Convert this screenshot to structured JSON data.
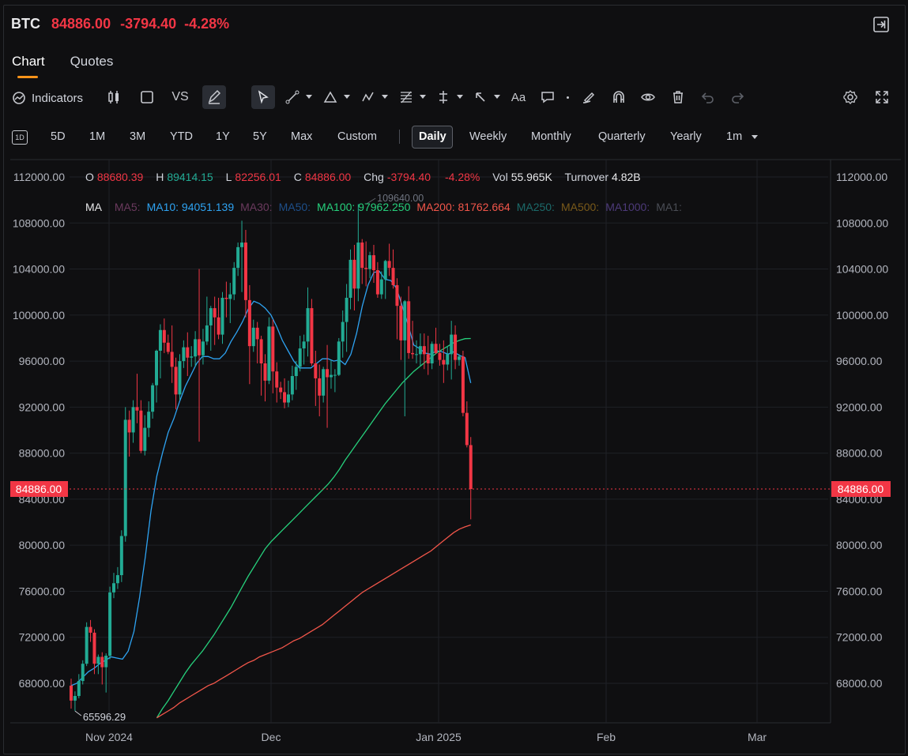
{
  "header": {
    "symbol": "BTC",
    "price": "84886.00",
    "change": "-3794.40",
    "change_pct": "-4.28%"
  },
  "tabs": [
    {
      "label": "Chart",
      "active": true
    },
    {
      "label": "Quotes",
      "active": false
    }
  ],
  "toolbar": {
    "indicators_label": "Indicators",
    "vs_label": "VS",
    "text_tool_label": "Aa"
  },
  "periods": {
    "timeline_icon_label": "1D",
    "ranges": [
      "5D",
      "1M",
      "3M",
      "YTD",
      "1Y",
      "5Y",
      "Max",
      "Custom"
    ],
    "intervals": [
      "Daily",
      "Weekly",
      "Monthly",
      "Quarterly",
      "Yearly",
      "1m"
    ],
    "selected_interval": "Daily"
  },
  "ohlc": {
    "o_label": "O",
    "o": "88680.39",
    "h_label": "H",
    "h": "89414.15",
    "l_label": "L",
    "l": "82256.01",
    "c_label": "C",
    "c": "84886.00",
    "chg_label": "Chg",
    "chg": "-3794.40",
    "chg_pct": "-4.28%",
    "vol_label": "Vol",
    "vol": "55.965K",
    "turnover_label": "Turnover",
    "turnover": "4.82B"
  },
  "ma_legend": {
    "label": "MA",
    "items": [
      {
        "text": "MA5:",
        "color": "#6b3a5e"
      },
      {
        "text": "MA10: 94051.139",
        "color": "#2ea3f2"
      },
      {
        "text": "MA30:",
        "color": "#6b3a5e"
      },
      {
        "text": "MA50:",
        "color": "#1e4f8a"
      },
      {
        "text": "MA100: 97962.250",
        "color": "#26d07c"
      },
      {
        "text": "MA200: 81762.664",
        "color": "#f2564a"
      },
      {
        "text": "MA250:",
        "color": "#1c6a6a"
      },
      {
        "text": "MA500:",
        "color": "#7a5a1a"
      },
      {
        "text": "MA1000:",
        "color": "#4d3a7a"
      },
      {
        "text": "MA1:",
        "color": "#4a4d55"
      }
    ]
  },
  "chart_data": {
    "type": "candlestick",
    "y_ticks": [
      "112000.00",
      "108000.00",
      "104000.00",
      "100000.00",
      "96000.00",
      "92000.00",
      "88000.00",
      "84000.00",
      "80000.00",
      "76000.00",
      "72000.00",
      "68000.00"
    ],
    "x_ticks": [
      "Nov 2024",
      "Dec",
      "Jan 2025",
      "Feb",
      "Mar"
    ],
    "ylim": [
      65000,
      112500
    ],
    "last_price_label": "84886.00",
    "max_annotation": "109640.00",
    "min_annotation": "65596.29",
    "colors": {
      "up": "#22ab94",
      "down": "#f23645",
      "ma10": "#2ea3f2",
      "ma100": "#26d07c",
      "ma200": "#f2564a"
    },
    "series": [
      {
        "name": "MA10",
        "values": [
          67800,
          68000,
          68500,
          69000,
          69300,
          69700,
          70000,
          70300,
          70200,
          70100,
          70800,
          72500,
          75500,
          79000,
          83000,
          86000,
          88000,
          89800,
          91000,
          92500,
          93800,
          94800,
          95800,
          96400,
          96400,
          96200,
          96200,
          96700,
          97700,
          98500,
          99400,
          100500,
          101200,
          101000,
          100600,
          100000,
          99000,
          97800,
          96900,
          96000,
          95400,
          95400,
          95400,
          95800,
          96200,
          96200,
          96000,
          96100,
          95700,
          96600,
          98400,
          100800,
          102600,
          103700,
          103800,
          103100,
          103000,
          102300,
          100800,
          99200,
          97400,
          97100,
          96700,
          96600,
          96900,
          96800,
          96600,
          96800,
          96500,
          96300,
          94100
        ]
      },
      {
        "name": "MA100",
        "values": [
          null,
          null,
          null,
          null,
          null,
          null,
          null,
          null,
          null,
          null,
          null,
          null,
          null,
          null,
          null,
          65000,
          65800,
          66500,
          67300,
          68100,
          68900,
          69600,
          70200,
          70800,
          71500,
          72200,
          73000,
          73800,
          74600,
          75500,
          76400,
          77300,
          78100,
          78900,
          79700,
          80300,
          80800,
          81300,
          81800,
          82300,
          82800,
          83300,
          83800,
          84300,
          84800,
          85300,
          85900,
          86600,
          87400,
          88100,
          88800,
          89500,
          90200,
          90900,
          91600,
          92300,
          92900,
          93500,
          94100,
          94600,
          95100,
          95500,
          95900,
          96300,
          96700,
          97000,
          97300,
          97600,
          97800,
          97950,
          97960
        ]
      },
      {
        "name": "MA200",
        "values": [
          null,
          null,
          null,
          null,
          null,
          null,
          null,
          null,
          null,
          null,
          null,
          null,
          null,
          null,
          null,
          65000,
          65300,
          65600,
          65900,
          66300,
          66600,
          66900,
          67200,
          67500,
          67800,
          68000,
          68300,
          68600,
          68900,
          69200,
          69500,
          69800,
          70000,
          70300,
          70500,
          70700,
          70900,
          71100,
          71400,
          71700,
          71900,
          72200,
          72500,
          72800,
          73100,
          73500,
          73900,
          74300,
          74700,
          75100,
          75500,
          75900,
          76200,
          76500,
          76800,
          77100,
          77400,
          77700,
          78000,
          78300,
          78600,
          78900,
          79200,
          79500,
          79900,
          80300,
          80700,
          81100,
          81400,
          81600,
          81760
        ]
      }
    ],
    "candles": [
      [
        67800,
        68400,
        65800,
        66500
      ],
      [
        66500,
        67300,
        65600,
        66900
      ],
      [
        66900,
        68800,
        66700,
        68200
      ],
      [
        68200,
        70000,
        67900,
        69700
      ],
      [
        69700,
        73300,
        69500,
        72900
      ],
      [
        72900,
        73500,
        71600,
        72400
      ],
      [
        72400,
        72700,
        68800,
        69700
      ],
      [
        69700,
        70500,
        68800,
        70300
      ],
      [
        70300,
        70700,
        67900,
        69400
      ],
      [
        69400,
        70600,
        67200,
        70400
      ],
      [
        70400,
        76400,
        70100,
        75900
      ],
      [
        75900,
        77600,
        75400,
        76700
      ],
      [
        76700,
        78100,
        76200,
        77400
      ],
      [
        77400,
        81300,
        76800,
        80800
      ],
      [
        80800,
        92000,
        80300,
        90900
      ],
      [
        90900,
        91700,
        87700,
        89800
      ],
      [
        89800,
        92600,
        88900,
        92000
      ],
      [
        92000,
        94900,
        90600,
        91700
      ],
      [
        91700,
        92600,
        88000,
        88200
      ],
      [
        88200,
        91300,
        87800,
        90200
      ],
      [
        90200,
        92500,
        89400,
        91600
      ],
      [
        91600,
        94100,
        91000,
        93900
      ],
      [
        93900,
        97000,
        92400,
        96900
      ],
      [
        96900,
        99200,
        94500,
        98700
      ],
      [
        98700,
        99700,
        96700,
        97600
      ],
      [
        97600,
        98300,
        96600,
        96800
      ],
      [
        96800,
        99100,
        94100,
        95500
      ],
      [
        95500,
        96300,
        91800,
        93100
      ],
      [
        93100,
        96600,
        92600,
        96000
      ],
      [
        96000,
        97800,
        95400,
        97200
      ],
      [
        97200,
        98500,
        94700,
        96300
      ],
      [
        96300,
        97300,
        95500,
        96400
      ],
      [
        96400,
        98600,
        95500,
        97900
      ],
      [
        97900,
        104000,
        89000,
        96500
      ],
      [
        96500,
        98800,
        95700,
        97700
      ],
      [
        97700,
        101600,
        97400,
        99100
      ],
      [
        99100,
        100800,
        96900,
        100600
      ],
      [
        100600,
        101600,
        97400,
        99800
      ],
      [
        99800,
        101500,
        97900,
        98300
      ],
      [
        98300,
        102000,
        97500,
        101500
      ],
      [
        101500,
        102900,
        99800,
        101400
      ],
      [
        101400,
        102800,
        99300,
        101800
      ],
      [
        101800,
        104600,
        101300,
        104100
      ],
      [
        104100,
        106300,
        103400,
        105900
      ],
      [
        105900,
        108200,
        102000,
        106300
      ],
      [
        106300,
        107400,
        99800,
        101300
      ],
      [
        101300,
        102600,
        94000,
        97300
      ],
      [
        97300,
        99600,
        96800,
        98900
      ],
      [
        98900,
        99400,
        95800,
        97900
      ],
      [
        97900,
        98200,
        93000,
        95800
      ],
      [
        95800,
        96600,
        92500,
        94300
      ],
      [
        94300,
        99800,
        94000,
        99000
      ],
      [
        99000,
        99600,
        93200,
        95100
      ],
      [
        95100,
        95900,
        92400,
        93700
      ],
      [
        93700,
        94200,
        92700,
        93300
      ],
      [
        93300,
        94500,
        91900,
        92400
      ],
      [
        92400,
        94300,
        92000,
        93100
      ],
      [
        93100,
        95600,
        92600,
        94700
      ],
      [
        94700,
        96000,
        93500,
        95500
      ],
      [
        95500,
        98200,
        95100,
        97100
      ],
      [
        97100,
        98300,
        95700,
        97700
      ],
      [
        97700,
        102400,
        96400,
        100600
      ],
      [
        100600,
        101400,
        95600,
        95800
      ],
      [
        95800,
        96900,
        92100,
        94500
      ],
      [
        94500,
        95700,
        91200,
        93000
      ],
      [
        93000,
        95500,
        92400,
        95300
      ],
      [
        95300,
        97400,
        90200,
        94600
      ],
      [
        94600,
        96100,
        93600,
        94800
      ],
      [
        94800,
        95300,
        93300,
        94800
      ],
      [
        94800,
        98000,
        94700,
        97700
      ],
      [
        97700,
        100400,
        96300,
        99400
      ],
      [
        99400,
        102700,
        96800,
        101500
      ],
      [
        101500,
        105700,
        100500,
        104800
      ],
      [
        104800,
        106100,
        100400,
        102300
      ],
      [
        102300,
        109640,
        101200,
        106300
      ],
      [
        106300,
        106600,
        102700,
        104100
      ],
      [
        104100,
        106400,
        102500,
        104000
      ],
      [
        104000,
        105500,
        103200,
        105200
      ],
      [
        105200,
        106100,
        102800,
        103900
      ],
      [
        103900,
        104600,
        101500,
        101800
      ],
      [
        101800,
        103800,
        101400,
        103100
      ],
      [
        103100,
        104800,
        101400,
        104700
      ],
      [
        104700,
        106200,
        103400,
        104100
      ],
      [
        104100,
        105700,
        102300,
        102600
      ],
      [
        102600,
        103200,
        97900,
        100800
      ],
      [
        100800,
        101600,
        96100,
        97800
      ],
      [
        97800,
        101300,
        91200,
        101200
      ],
      [
        101200,
        102500,
        96200,
        96700
      ],
      [
        96700,
        99500,
        96200,
        96600
      ],
      [
        96600,
        97800,
        95800,
        96600
      ],
      [
        96600,
        98400,
        95600,
        97300
      ],
      [
        97300,
        98400,
        95300,
        96600
      ],
      [
        96600,
        98200,
        94800,
        95800
      ],
      [
        95800,
        97700,
        95300,
        97500
      ],
      [
        97500,
        98900,
        96600,
        96700
      ],
      [
        96700,
        97500,
        95600,
        96100
      ],
      [
        96100,
        97800,
        94100,
        95700
      ],
      [
        95700,
        97300,
        95200,
        96600
      ],
      [
        96600,
        99500,
        94400,
        98300
      ],
      [
        98300,
        99100,
        95300,
        96100
      ],
      [
        96100,
        96600,
        95600,
        96400
      ],
      [
        96400,
        96900,
        91200,
        91500
      ],
      [
        91500,
        92500,
        88500,
        88700
      ],
      [
        88700,
        89400,
        82250,
        84886
      ]
    ]
  }
}
